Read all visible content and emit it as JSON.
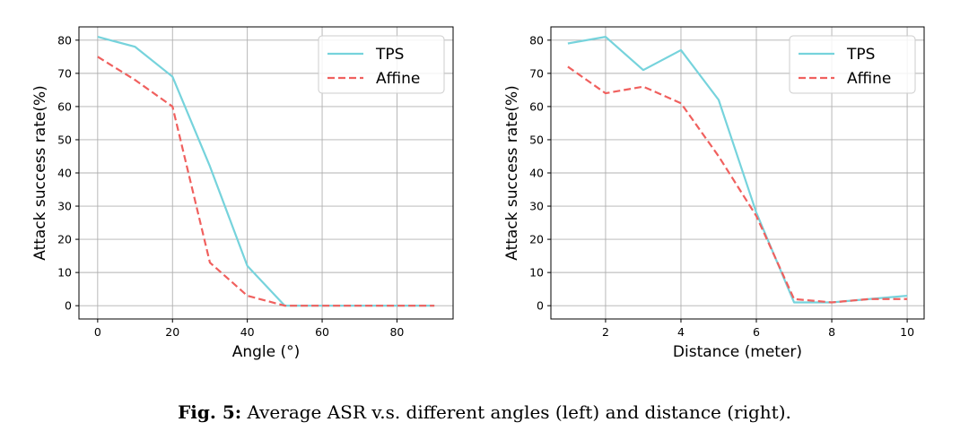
{
  "colors": {
    "tps": "#76d3dc",
    "affine": "#f0605e",
    "grid": "#b0b0b0",
    "legend_border": "#cccccc"
  },
  "caption": {
    "label": "Fig. 5:",
    "text": "Average ASR v.s. different angles (left) and distance (right)."
  },
  "chart_data": [
    {
      "type": "line",
      "xlabel": "Angle (°)",
      "ylabel": "Attack success rate(%)",
      "xlim": [
        -5,
        95
      ],
      "ylim": [
        -4,
        84
      ],
      "xticks": [
        0,
        20,
        40,
        60,
        80
      ],
      "yticks": [
        0,
        10,
        20,
        30,
        40,
        50,
        60,
        70,
        80
      ],
      "legend": "top-right",
      "grid": true,
      "series": [
        {
          "name": "TPS",
          "style": "solid",
          "x": [
            0,
            10,
            20,
            30,
            40,
            50,
            60,
            70,
            80,
            90
          ],
          "y": [
            81,
            78,
            69,
            42,
            12,
            0,
            0,
            0,
            0,
            0
          ]
        },
        {
          "name": "Affine",
          "style": "dashed",
          "x": [
            0,
            10,
            20,
            30,
            40,
            50,
            60,
            70,
            80,
            90
          ],
          "y": [
            75,
            68,
            60,
            13,
            3,
            0,
            0,
            0,
            0,
            0
          ]
        }
      ]
    },
    {
      "type": "line",
      "xlabel": "Distance (meter)",
      "ylabel": "Attack success rate(%)",
      "xlim": [
        0.55,
        10.45
      ],
      "ylim": [
        -4,
        84
      ],
      "xticks": [
        2,
        4,
        6,
        8,
        10
      ],
      "yticks": [
        0,
        10,
        20,
        30,
        40,
        50,
        60,
        70,
        80
      ],
      "legend": "top-right",
      "grid": true,
      "series": [
        {
          "name": "TPS",
          "style": "solid",
          "x": [
            1,
            2,
            3,
            4,
            5,
            6,
            7,
            8,
            9,
            10
          ],
          "y": [
            79,
            81,
            71,
            77,
            62,
            28,
            1,
            1,
            2,
            3
          ]
        },
        {
          "name": "Affine",
          "style": "dashed",
          "x": [
            1,
            2,
            3,
            4,
            5,
            6,
            7,
            8,
            9,
            10
          ],
          "y": [
            72,
            64,
            66,
            61,
            45,
            27,
            2,
            1,
            2,
            2
          ]
        }
      ]
    }
  ]
}
